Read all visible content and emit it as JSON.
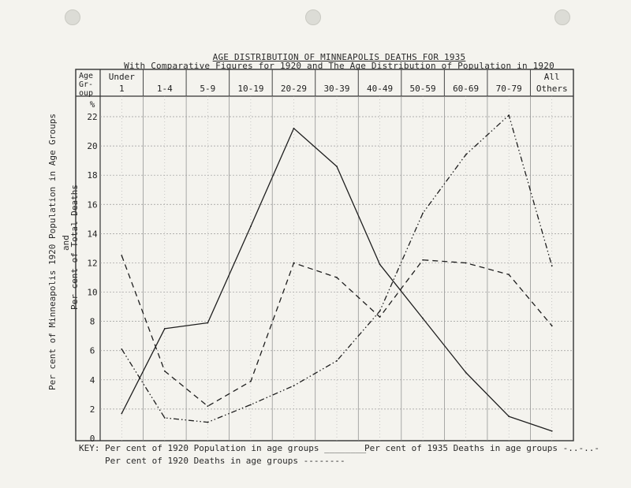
{
  "chart_data": {
    "type": "line",
    "title": "AGE DISTRIBUTION OF MINNEAPOLIS DEATHS FOR 1935",
    "subtitle": "With Comparative Figures for 1920 and The Age Distribution of Population in 1920",
    "header_label": [
      "Age",
      "Gr-",
      "oup"
    ],
    "categories": [
      [
        "Under",
        "1"
      ],
      [
        "1-4"
      ],
      [
        "5-9"
      ],
      [
        "10-19"
      ],
      [
        "20-29"
      ],
      [
        "30-39"
      ],
      [
        "40-49"
      ],
      [
        "50-59"
      ],
      [
        "60-69"
      ],
      [
        "70-79"
      ],
      [
        "All",
        "Others"
      ]
    ],
    "ylabel_outer": "Per cent of Minneapolis 1920 Population in Age Groups",
    "ylabel_and": "and",
    "ylabel_inner": "Per cent of Total Deaths",
    "y_unit": "%",
    "y_ticks": [
      0,
      2,
      4,
      6,
      8,
      10,
      12,
      14,
      16,
      18,
      20,
      22
    ],
    "ylim": [
      0,
      23.5
    ],
    "grid": true,
    "series": [
      {
        "name": "Per cent of 1920 Population in age groups",
        "style": "solid",
        "values": [
          1.7,
          7.5,
          7.9,
          14.5,
          21.2,
          18.6,
          11.9,
          8.2,
          4.5,
          1.5,
          0.5
        ]
      },
      {
        "name": "Per cent of 1920 Deaths in age groups",
        "style": "dashed",
        "values": [
          12.5,
          4.6,
          2.2,
          3.9,
          12.0,
          11.0,
          8.3,
          12.2,
          12.0,
          11.2,
          7.7
        ]
      },
      {
        "name": "Per cent of 1935 Deaths in age groups",
        "style": "dashdotdot",
        "values": [
          6.1,
          1.4,
          1.1,
          2.3,
          3.6,
          5.3,
          8.7,
          15.4,
          19.4,
          22.1,
          11.8
        ]
      }
    ],
    "legend": {
      "placement": "bottom",
      "key_label": "KEY:",
      "samples": [
        "________",
        "--------",
        "-..-..-"
      ]
    }
  }
}
